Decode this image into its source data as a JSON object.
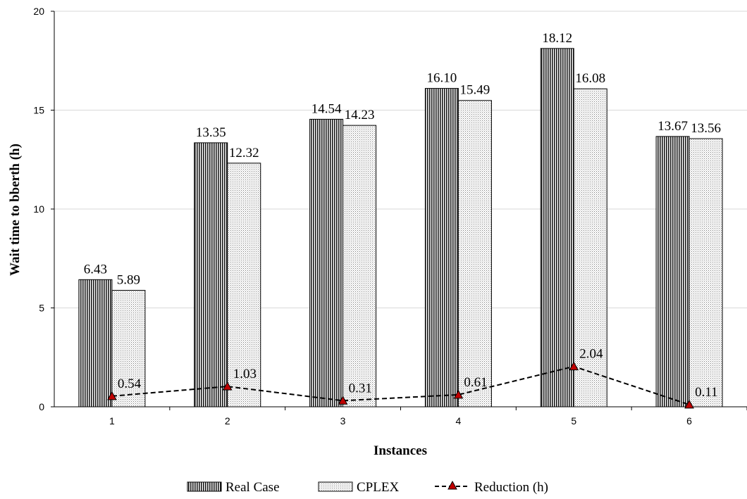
{
  "chart_data": {
    "type": "bar",
    "categories": [
      "1",
      "2",
      "3",
      "4",
      "5",
      "6"
    ],
    "series": [
      {
        "name": "Real Case",
        "kind": "bar",
        "values": [
          6.43,
          13.35,
          14.54,
          16.1,
          18.12,
          13.67
        ],
        "labels": [
          "6.43",
          "13.35",
          "14.54",
          "16.10",
          "18.12",
          "13.67"
        ]
      },
      {
        "name": "CPLEX",
        "kind": "bar",
        "values": [
          5.89,
          12.32,
          14.23,
          15.49,
          16.08,
          13.56
        ],
        "labels": [
          "5.89",
          "12.32",
          "14.23",
          "15.49",
          "16.08",
          "13.56"
        ]
      },
      {
        "name": "Reduction (h)",
        "kind": "line",
        "values": [
          0.54,
          1.03,
          0.31,
          0.61,
          2.04,
          0.11
        ],
        "labels": [
          "0.54",
          "1.03",
          "0.31",
          "0.61",
          "2.04",
          "0.11"
        ]
      }
    ],
    "xlabel": "Instances",
    "ylabel": "Wait time to bberth (h)",
    "ylim": [
      0,
      20
    ],
    "yticks": [
      "0",
      "5",
      "10",
      "15",
      "20"
    ],
    "grid": true,
    "legend_position": "bottom-center",
    "colors": {
      "line": "#000000",
      "marker": "#c00000",
      "grid": "#d9d9d9"
    }
  }
}
